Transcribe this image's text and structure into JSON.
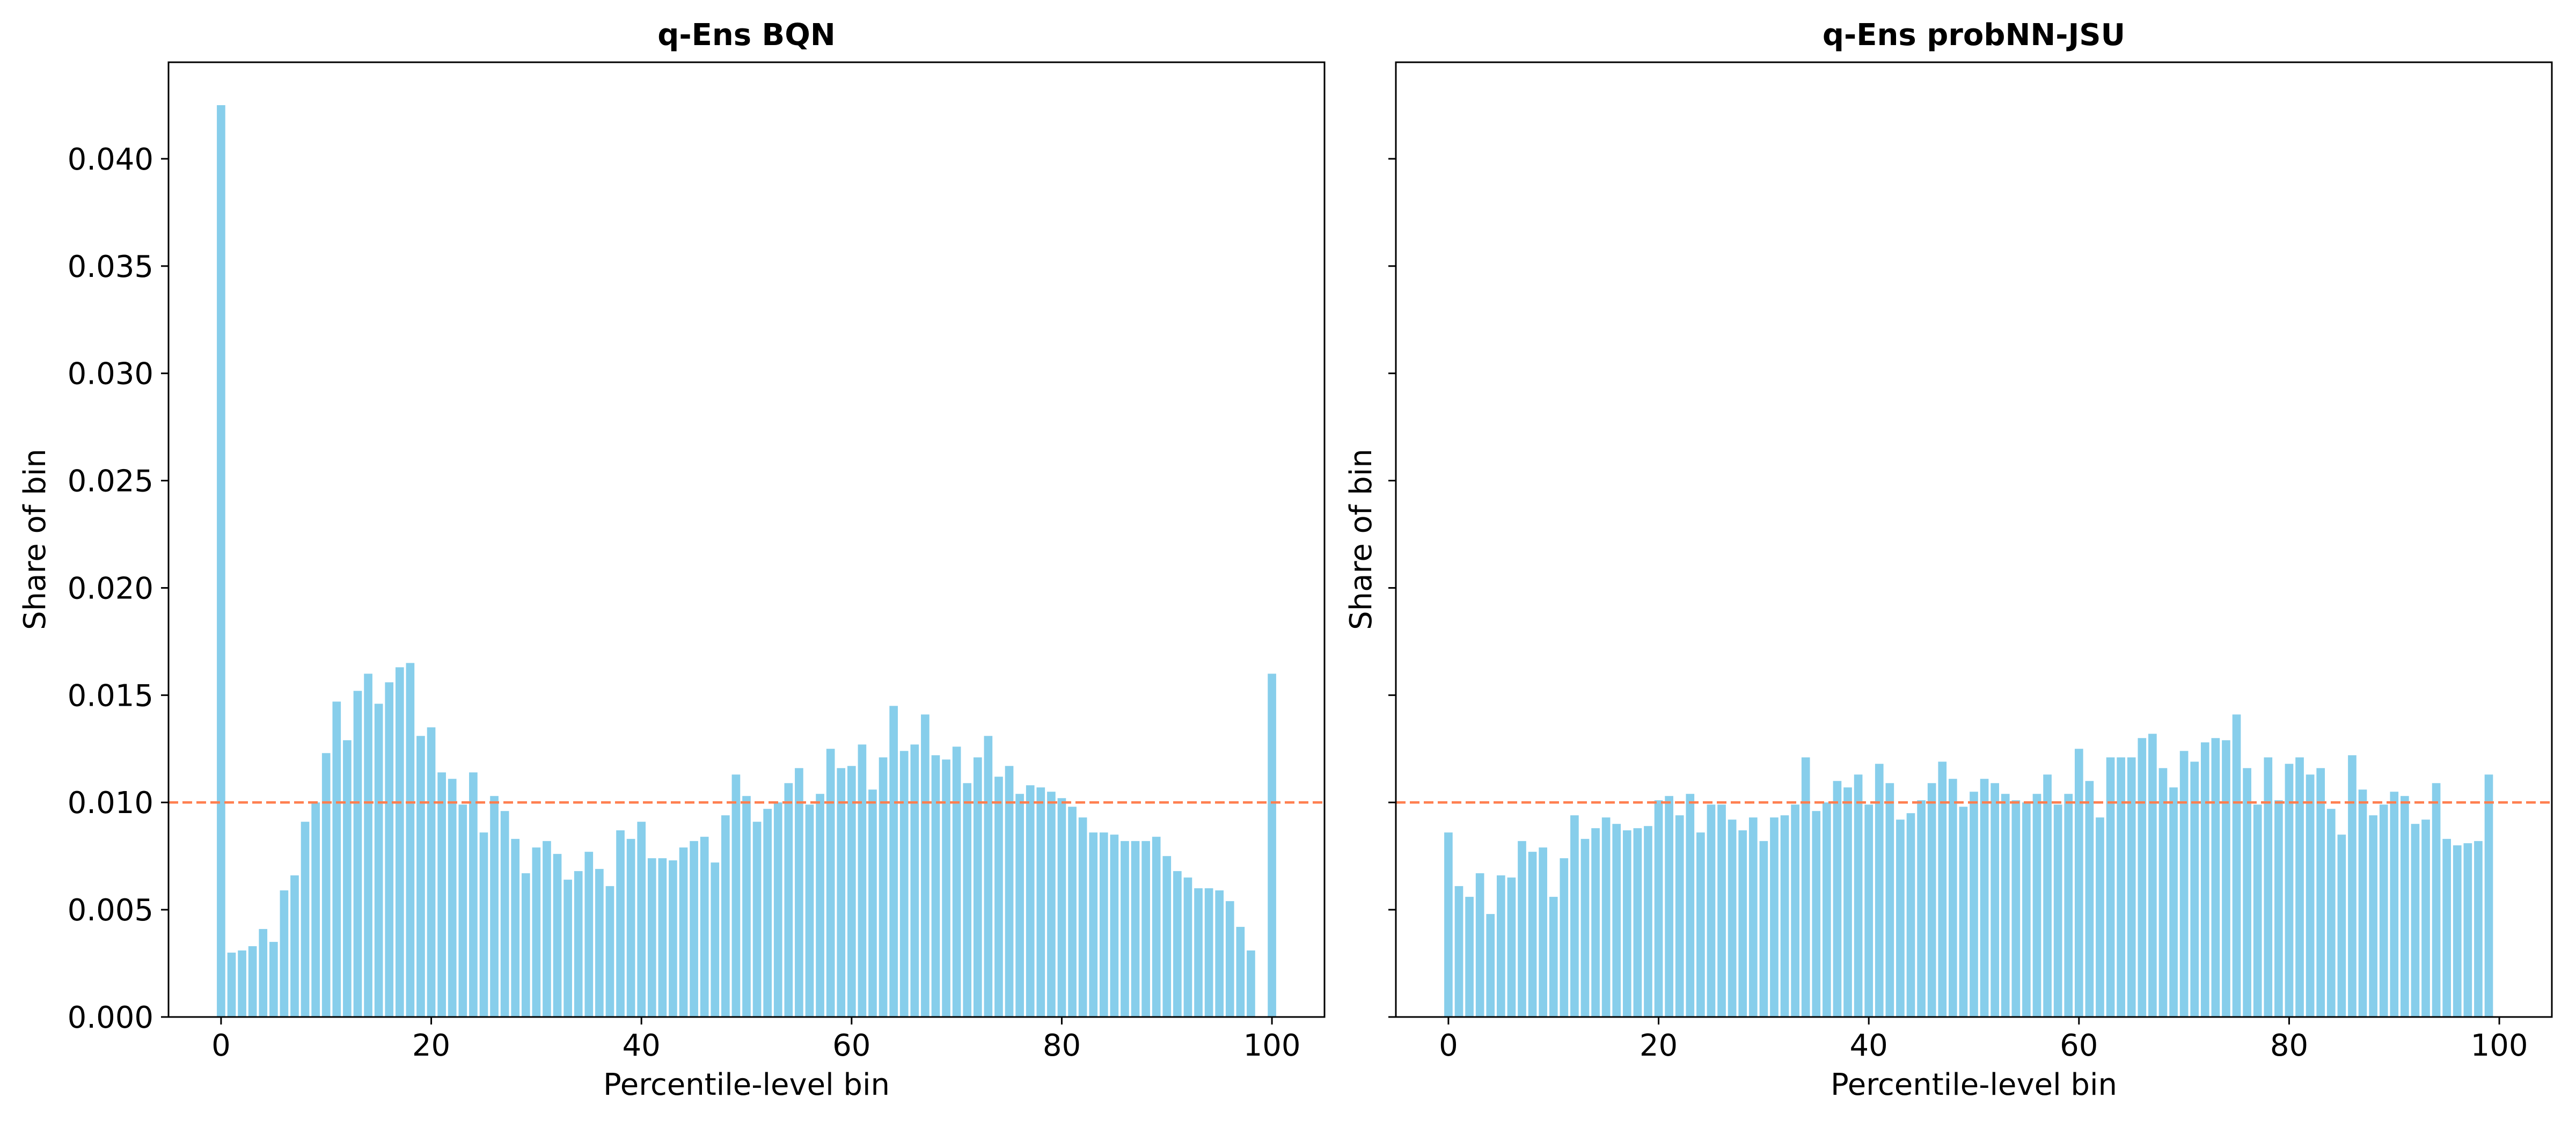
{
  "chart_data": [
    {
      "type": "bar",
      "title": "q-Ens BQN",
      "xlabel": "Percentile-level bin",
      "ylabel": "Share of bin",
      "xlim": [
        -5,
        105
      ],
      "ylim": [
        0,
        0.0445
      ],
      "xticks": [
        0,
        20,
        40,
        60,
        80,
        100
      ],
      "xtick_labels": [
        "0",
        "20",
        "40",
        "60",
        "80",
        "100"
      ],
      "yticks": [
        0,
        0.005,
        0.01,
        0.015,
        0.02,
        0.025,
        0.03,
        0.035,
        0.04
      ],
      "ytick_labels": [
        "0.000",
        "0.005",
        "0.010",
        "0.015",
        "0.020",
        "0.025",
        "0.030",
        "0.035",
        "0.040"
      ],
      "bar_color": "#87CEEB",
      "reference_line": {
        "y": 0.01,
        "color": "#FF7F50",
        "style": "dashed"
      },
      "grid": false,
      "x": [
        0,
        1,
        2,
        3,
        4,
        5,
        6,
        7,
        8,
        9,
        10,
        11,
        12,
        13,
        14,
        15,
        16,
        17,
        18,
        19,
        20,
        21,
        22,
        23,
        24,
        25,
        26,
        27,
        28,
        29,
        30,
        31,
        32,
        33,
        34,
        35,
        36,
        37,
        38,
        39,
        40,
        41,
        42,
        43,
        44,
        45,
        46,
        47,
        48,
        49,
        50,
        51,
        52,
        53,
        54,
        55,
        56,
        57,
        58,
        59,
        60,
        61,
        62,
        63,
        64,
        65,
        66,
        67,
        68,
        69,
        70,
        71,
        72,
        73,
        74,
        75,
        76,
        77,
        78,
        79,
        80,
        81,
        82,
        83,
        84,
        85,
        86,
        87,
        88,
        89,
        90,
        91,
        92,
        93,
        94,
        95,
        96,
        97,
        98,
        99,
        100
      ],
      "values": [
        0.0425,
        0.003,
        0.0031,
        0.0033,
        0.0041,
        0.0035,
        0.0059,
        0.0066,
        0.0091,
        0.01,
        0.0123,
        0.0147,
        0.0129,
        0.0152,
        0.016,
        0.0146,
        0.0156,
        0.0163,
        0.0165,
        0.0131,
        0.0135,
        0.0114,
        0.0111,
        0.0099,
        0.0114,
        0.0086,
        0.0103,
        0.0096,
        0.0083,
        0.0067,
        0.0079,
        0.0082,
        0.0076,
        0.0064,
        0.0068,
        0.0077,
        0.0069,
        0.0061,
        0.0087,
        0.0083,
        0.0091,
        0.0074,
        0.0074,
        0.0073,
        0.0079,
        0.0082,
        0.0084,
        0.0072,
        0.0094,
        0.0113,
        0.0103,
        0.0091,
        0.0097,
        0.01,
        0.0109,
        0.0116,
        0.0099,
        0.0104,
        0.0125,
        0.0116,
        0.0117,
        0.0127,
        0.0106,
        0.0121,
        0.0145,
        0.0124,
        0.0127,
        0.0141,
        0.0122,
        0.012,
        0.0126,
        0.0109,
        0.0121,
        0.0131,
        0.0112,
        0.0117,
        0.0104,
        0.0108,
        0.0107,
        0.0105,
        0.0102,
        0.0098,
        0.0093,
        0.0086,
        0.0086,
        0.0085,
        0.0082,
        0.0082,
        0.0082,
        0.0084,
        0.0075,
        0.0068,
        0.0065,
        0.006,
        0.006,
        0.0059,
        0.0054,
        0.0042,
        0.0031,
        0.0,
        0.016
      ]
    },
    {
      "type": "bar",
      "title": "q-Ens probNN-JSU",
      "xlabel": "Percentile-level bin",
      "ylabel": "Share of bin",
      "xlim": [
        -5,
        105
      ],
      "ylim": [
        0,
        0.0445
      ],
      "xticks": [
        0,
        20,
        40,
        60,
        80,
        100
      ],
      "xtick_labels": [
        "0",
        "20",
        "40",
        "60",
        "80",
        "100"
      ],
      "yticks": [
        0,
        0.005,
        0.01,
        0.015,
        0.02,
        0.025,
        0.03,
        0.035,
        0.04
      ],
      "ytick_labels": [],
      "bar_color": "#87CEEB",
      "reference_line": {
        "y": 0.01,
        "color": "#FF7F50",
        "style": "dashed"
      },
      "grid": false,
      "x": [
        0,
        1,
        2,
        3,
        4,
        5,
        6,
        7,
        8,
        9,
        10,
        11,
        12,
        13,
        14,
        15,
        16,
        17,
        18,
        19,
        20,
        21,
        22,
        23,
        24,
        25,
        26,
        27,
        28,
        29,
        30,
        31,
        32,
        33,
        34,
        35,
        36,
        37,
        38,
        39,
        40,
        41,
        42,
        43,
        44,
        45,
        46,
        47,
        48,
        49,
        50,
        51,
        52,
        53,
        54,
        55,
        56,
        57,
        58,
        59,
        60,
        61,
        62,
        63,
        64,
        65,
        66,
        67,
        68,
        69,
        70,
        71,
        72,
        73,
        74,
        75,
        76,
        77,
        78,
        79,
        80,
        81,
        82,
        83,
        84,
        85,
        86,
        87,
        88,
        89,
        90,
        91,
        92,
        93,
        94,
        95,
        96,
        97,
        98,
        99,
        100
      ],
      "values": [
        0.0086,
        0.0061,
        0.0056,
        0.0067,
        0.0048,
        0.0066,
        0.0065,
        0.0082,
        0.0077,
        0.0079,
        0.0056,
        0.0074,
        0.0094,
        0.0083,
        0.0088,
        0.0093,
        0.009,
        0.0087,
        0.0088,
        0.0089,
        0.0101,
        0.0103,
        0.0094,
        0.0104,
        0.0086,
        0.0099,
        0.0099,
        0.0092,
        0.0087,
        0.0093,
        0.0082,
        0.0093,
        0.0094,
        0.0099,
        0.0121,
        0.0096,
        0.01,
        0.011,
        0.0107,
        0.0113,
        0.0099,
        0.0118,
        0.0109,
        0.0092,
        0.0095,
        0.0101,
        0.0109,
        0.0119,
        0.0111,
        0.0098,
        0.0105,
        0.0111,
        0.0109,
        0.0104,
        0.0101,
        0.01,
        0.0104,
        0.0113,
        0.0099,
        0.0104,
        0.0125,
        0.011,
        0.0093,
        0.0121,
        0.0121,
        0.0121,
        0.013,
        0.0132,
        0.0116,
        0.0107,
        0.0124,
        0.0119,
        0.0128,
        0.013,
        0.0129,
        0.0141,
        0.0116,
        0.0099,
        0.0121,
        0.0101,
        0.0118,
        0.0121,
        0.0113,
        0.0116,
        0.0097,
        0.0085,
        0.0122,
        0.0106,
        0.0094,
        0.0099,
        0.0105,
        0.0103,
        0.009,
        0.0092,
        0.0109,
        0.0083,
        0.008,
        0.0081,
        0.0082,
        0.0113,
        0.0
      ]
    }
  ]
}
